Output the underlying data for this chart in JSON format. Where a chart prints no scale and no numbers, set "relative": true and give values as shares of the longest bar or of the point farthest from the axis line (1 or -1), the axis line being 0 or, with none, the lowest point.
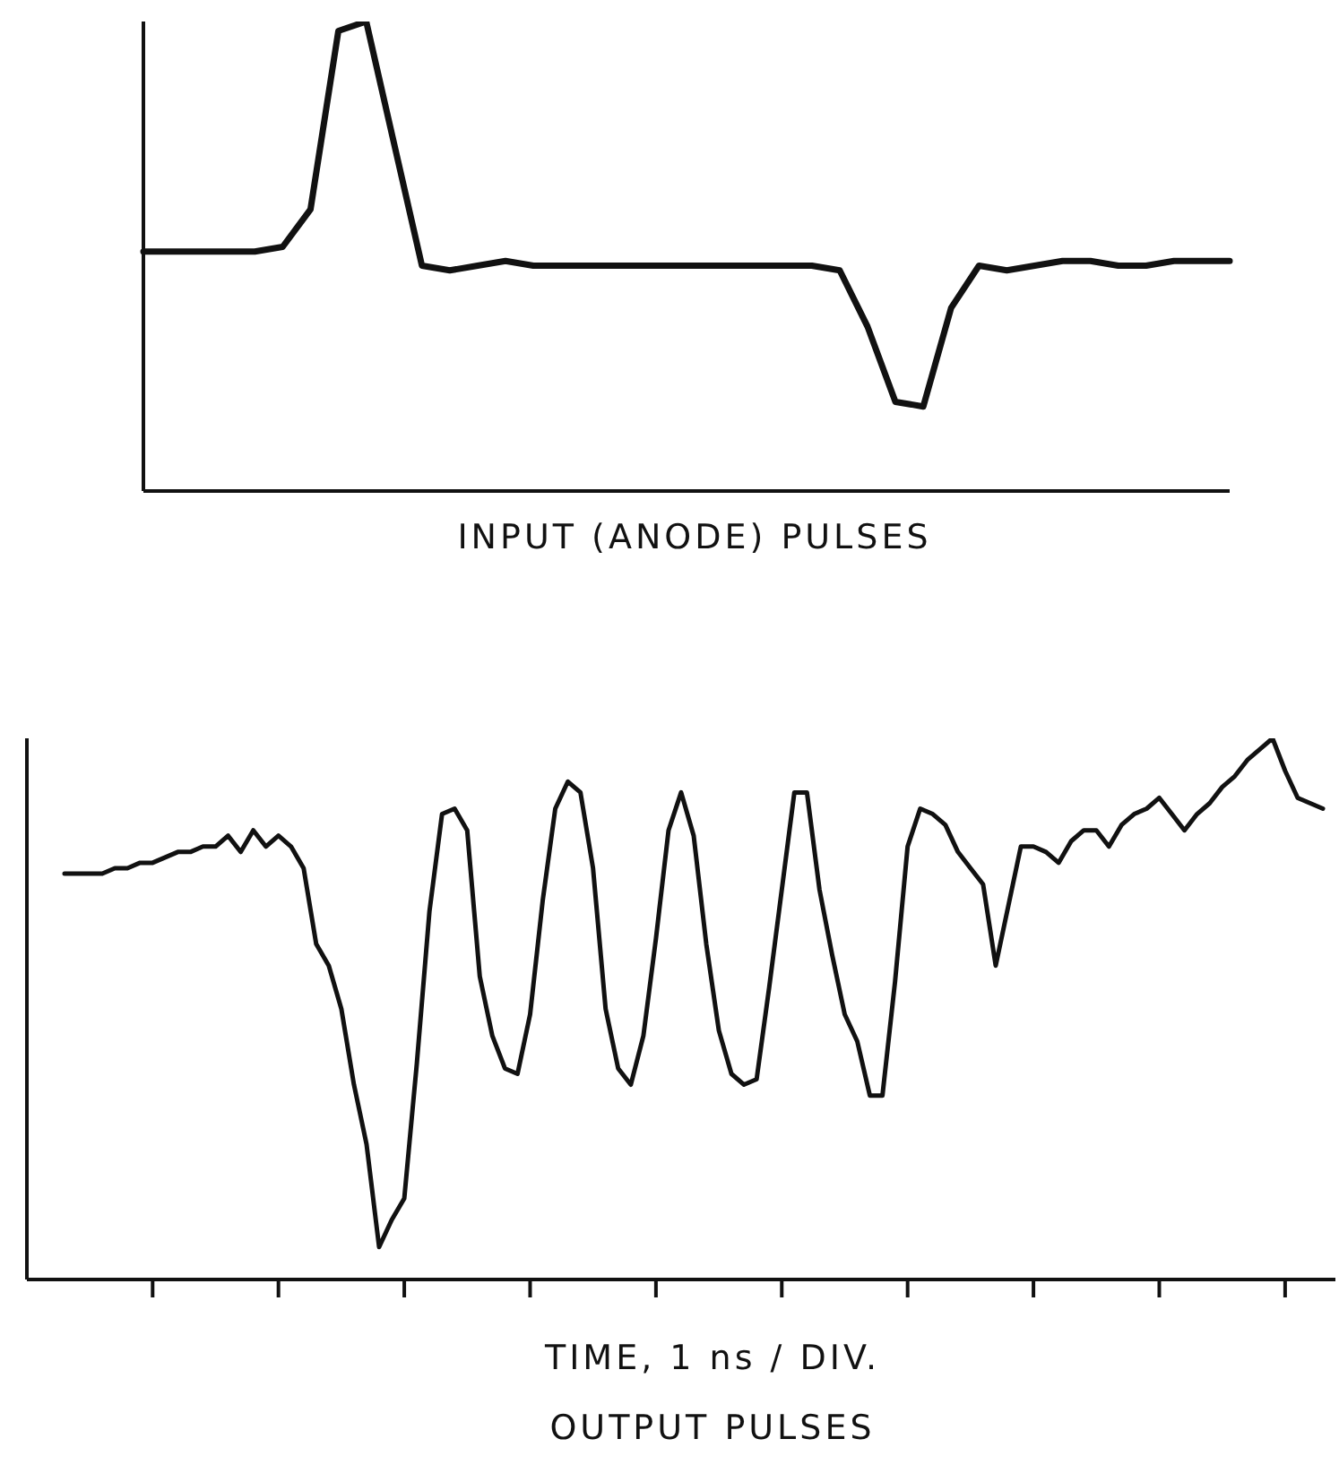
{
  "chart_data": [
    {
      "type": "line",
      "title": "INPUT (ANODE) PULSES",
      "relative": true,
      "categories": [
        null,
        null,
        null,
        null,
        null,
        null,
        null,
        null,
        null,
        null,
        null,
        null,
        null,
        null,
        null,
        null,
        null,
        null,
        null,
        null,
        null,
        null,
        null,
        null,
        null,
        null,
        null,
        null,
        null,
        null,
        null,
        null,
        null,
        null,
        null,
        null,
        null,
        null,
        null,
        null
      ],
      "series": [
        {
          "color": "#111111",
          "values": [
            0.51,
            0.51,
            0.51,
            0.51,
            0.51,
            0.52,
            0.6,
            0.98,
            1.0,
            0.74,
            0.48,
            0.47,
            0.48,
            0.49,
            0.48,
            0.48,
            0.48,
            0.48,
            0.48,
            0.48,
            0.48,
            0.48,
            0.48,
            0.48,
            0.48,
            0.47,
            0.35,
            0.19,
            0.18,
            0.39,
            0.48,
            0.47,
            0.48,
            0.49,
            0.49,
            0.48,
            0.48,
            0.49,
            0.49,
            0.49
          ]
        }
      ]
    },
    {
      "type": "line",
      "title": "OUTPUT PULSES",
      "xlabel": "TIME, 1 ns / DIV.",
      "relative": true,
      "categories": [
        null,
        null,
        null,
        null,
        null,
        null,
        null,
        null,
        null,
        null,
        null,
        null,
        null,
        null,
        null,
        null,
        null,
        null,
        null,
        null,
        null,
        null,
        null,
        null,
        null,
        null,
        null,
        null,
        null,
        null,
        null,
        null,
        null,
        null,
        null,
        null,
        null,
        null,
        null,
        null,
        null,
        null,
        null,
        null,
        null,
        null,
        null,
        null,
        null,
        null,
        null,
        null,
        null,
        null,
        null,
        null,
        null,
        null,
        null,
        null,
        null,
        null,
        null,
        null,
        null,
        null,
        null,
        null,
        null,
        null,
        null,
        null,
        null,
        null,
        null,
        null,
        null,
        null,
        null,
        null,
        null,
        null,
        null,
        null,
        null,
        null,
        null,
        null,
        null,
        null,
        null,
        null,
        null,
        null,
        null,
        null,
        null,
        null,
        null,
        null,
        null
      ],
      "series": [
        {
          "color": "#111111",
          "values": [
            0.75,
            0.75,
            0.75,
            0.75,
            0.76,
            0.76,
            0.77,
            0.77,
            0.78,
            0.79,
            0.79,
            0.8,
            0.8,
            0.82,
            0.79,
            0.83,
            0.8,
            0.82,
            0.8,
            0.76,
            0.62,
            0.58,
            0.5,
            0.36,
            0.25,
            0.06,
            0.11,
            0.15,
            0.4,
            0.68,
            0.86,
            0.87,
            0.83,
            0.56,
            0.45,
            0.39,
            0.38,
            0.49,
            0.7,
            0.87,
            0.92,
            0.9,
            0.76,
            0.5,
            0.39,
            0.36,
            0.45,
            0.63,
            0.83,
            0.9,
            0.82,
            0.62,
            0.46,
            0.38,
            0.36,
            0.37,
            0.54,
            0.72,
            0.9,
            0.9,
            0.72,
            0.6,
            0.49,
            0.44,
            0.34,
            0.34,
            0.55,
            0.8,
            0.87,
            0.86,
            0.84,
            0.79,
            0.76,
            0.73,
            0.58,
            0.69,
            0.8,
            0.8,
            0.79,
            0.77,
            0.81,
            0.83,
            0.83,
            0.8,
            0.84,
            0.86,
            0.87,
            0.89,
            0.86,
            0.83,
            0.86,
            0.88,
            0.91,
            0.93,
            0.96,
            0.98,
            1.0,
            0.94,
            0.89,
            0.88,
            0.87
          ]
        }
      ]
    }
  ]
}
